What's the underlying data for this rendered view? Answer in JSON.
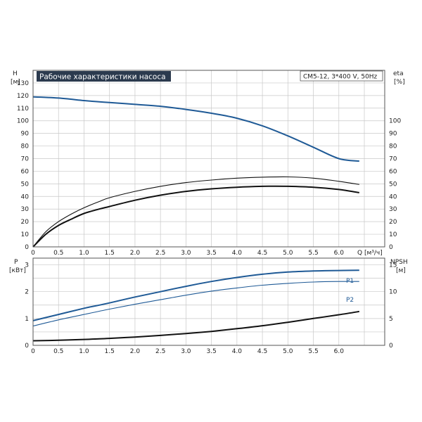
{
  "chart_data": [
    {
      "type": "line",
      "title": "Рабочие характеристики насоса",
      "model": "CM5-12, 3*400 V, 50Hz",
      "xlabel": "Q [м³/ч]",
      "xticks": [
        "0",
        "0.5",
        "1.0",
        "1.5",
        "2.0",
        "2.5",
        "3.0",
        "3.5",
        "4.0",
        "4.5",
        "5.0",
        "5.5",
        "6.0"
      ],
      "xlim": [
        0,
        6.9
      ],
      "ylabel_left": "H",
      "ylabel_left_unit": "[м]",
      "ylim_left": [
        0,
        140
      ],
      "yticks_left": [
        0,
        10,
        20,
        30,
        40,
        50,
        60,
        70,
        80,
        90,
        100,
        110,
        120,
        130
      ],
      "ylabel_right": "eta",
      "ylabel_right_unit": "[%]",
      "ylim_right": [
        0,
        140
      ],
      "yticks_right": [
        0,
        10,
        20,
        30,
        40,
        50,
        60,
        70,
        80,
        90,
        100
      ],
      "grid": true,
      "series": [
        {
          "axis": "left",
          "color": "#1f5a96",
          "x": [
            0,
            0.5,
            1.0,
            1.3,
            1.5,
            2.0,
            2.5,
            3.0,
            3.5,
            4.0,
            4.5,
            5.0,
            5.5,
            6.0,
            6.4
          ],
          "y": [
            119,
            118,
            116,
            115,
            114.5,
            113,
            111.5,
            109,
            106,
            102,
            96,
            88,
            79,
            70,
            68
          ]
        },
        {
          "axis": "right",
          "color": "#111111",
          "x": [
            0,
            0.25,
            0.5,
            0.75,
            1.0,
            1.3,
            1.5,
            2.0,
            2.5,
            3.0,
            3.5,
            4.0,
            4.5,
            5.0,
            5.5,
            6.0,
            6.4
          ],
          "y": [
            0,
            12,
            20,
            26,
            31,
            36,
            39,
            44,
            48,
            51,
            53,
            54.5,
            55.3,
            55.5,
            54.5,
            52,
            49.5
          ]
        },
        {
          "axis": "right",
          "color": "#111111",
          "x": [
            0,
            0.25,
            0.5,
            0.75,
            1.0,
            1.3,
            1.5,
            2.0,
            2.5,
            3.0,
            3.5,
            4.0,
            4.5,
            5.0,
            5.5,
            6.0,
            6.4
          ],
          "y": [
            0,
            10,
            17,
            22,
            26.5,
            30,
            32,
            37,
            41,
            44,
            46,
            47.3,
            48,
            48,
            47.3,
            45.5,
            43
          ]
        }
      ]
    },
    {
      "type": "line",
      "xlim": [
        0,
        6.9
      ],
      "ylabel_left": "P",
      "ylabel_left_unit": "[кВт]",
      "ylim_left": [
        0,
        3.25
      ],
      "yticks_left": [
        0,
        1,
        2,
        3
      ],
      "ylabel_right": "NPSH",
      "ylabel_right_unit": "[м]",
      "ylim_right": [
        0,
        16.25
      ],
      "yticks_right": [
        0,
        5,
        10,
        15
      ],
      "grid": true,
      "series": [
        {
          "name": "P1",
          "axis": "left",
          "color": "#1f5a96",
          "x": [
            0,
            0.5,
            1.0,
            1.3,
            1.5,
            2.0,
            2.5,
            3.0,
            3.5,
            4.0,
            4.5,
            5.0,
            5.5,
            6.0,
            6.4
          ],
          "y": [
            0.92,
            1.15,
            1.38,
            1.5,
            1.58,
            1.8,
            2.0,
            2.2,
            2.38,
            2.53,
            2.65,
            2.73,
            2.77,
            2.79,
            2.8
          ]
        },
        {
          "name": "P2",
          "axis": "left",
          "color": "#1f5a96",
          "x": [
            0,
            0.5,
            1.0,
            1.5,
            2.0,
            2.5,
            3.0,
            3.5,
            4.0,
            4.5,
            5.0,
            5.5,
            6.0,
            6.4
          ],
          "y": [
            0.72,
            0.95,
            1.15,
            1.35,
            1.53,
            1.7,
            1.87,
            2.02,
            2.14,
            2.24,
            2.31,
            2.36,
            2.38,
            2.38
          ]
        },
        {
          "axis": "right",
          "color": "#111111",
          "x": [
            0,
            0.5,
            1.0,
            1.3,
            1.5,
            2.0,
            2.5,
            3.0,
            3.5,
            4.0,
            4.5,
            5.0,
            5.5,
            6.0,
            6.4
          ],
          "y": [
            0.85,
            0.95,
            1.1,
            1.2,
            1.3,
            1.55,
            1.85,
            2.2,
            2.6,
            3.1,
            3.65,
            4.3,
            5.0,
            5.7,
            6.3
          ]
        }
      ]
    }
  ]
}
